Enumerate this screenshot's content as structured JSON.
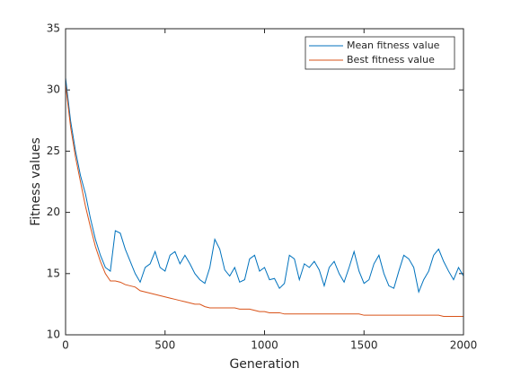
{
  "chart_data": {
    "type": "line",
    "xlabel": "Generation",
    "ylabel": "Fitness values",
    "x": [
      0,
      25,
      50,
      75,
      100,
      125,
      150,
      175,
      200,
      225,
      250,
      275,
      300,
      325,
      350,
      375,
      400,
      425,
      450,
      475,
      500,
      525,
      550,
      575,
      600,
      625,
      650,
      675,
      700,
      725,
      750,
      775,
      800,
      825,
      850,
      875,
      900,
      925,
      950,
      975,
      1000,
      1025,
      1050,
      1075,
      1100,
      1125,
      1150,
      1175,
      1200,
      1225,
      1250,
      1275,
      1300,
      1325,
      1350,
      1375,
      1400,
      1425,
      1450,
      1475,
      1500,
      1525,
      1550,
      1575,
      1600,
      1625,
      1650,
      1675,
      1700,
      1725,
      1750,
      1775,
      1800,
      1825,
      1850,
      1875,
      1900,
      1925,
      1950,
      1975,
      2000
    ],
    "series": [
      {
        "name": "Mean fitness value",
        "color": "#0072BD",
        "values": [
          31,
          27.5,
          25,
          23,
          21.5,
          19.5,
          17.8,
          16.5,
          15.5,
          15.2,
          18.5,
          18.3,
          17,
          16,
          15,
          14.3,
          15.5,
          15.8,
          16.8,
          15.5,
          15.2,
          16.5,
          16.8,
          15.8,
          16.5,
          15.8,
          15,
          14.5,
          14.2,
          15.5,
          17.8,
          17,
          15.3,
          14.8,
          15.5,
          14.3,
          14.5,
          16.2,
          16.5,
          15.2,
          15.5,
          14.5,
          14.6,
          13.8,
          14.2,
          16.5,
          16.2,
          14.5,
          15.8,
          15.5,
          16,
          15.3,
          14,
          15.5,
          16,
          15,
          14.3,
          15.5,
          16.8,
          15.2,
          14.2,
          14.5,
          15.8,
          16.5,
          15,
          14,
          13.8,
          15.2,
          16.5,
          16.2,
          15.5,
          13.5,
          14.5,
          15.2,
          16.5,
          17,
          16,
          15.2,
          14.5,
          15.5,
          14.8
        ]
      },
      {
        "name": "Best fitness value",
        "color": "#D95319",
        "values": [
          30.5,
          27,
          24.5,
          22.5,
          20.5,
          18.8,
          17.2,
          16,
          15,
          14.4,
          14.4,
          14.3,
          14.1,
          14,
          13.9,
          13.6,
          13.5,
          13.4,
          13.3,
          13.2,
          13.1,
          13,
          12.9,
          12.8,
          12.7,
          12.6,
          12.5,
          12.5,
          12.3,
          12.2,
          12.2,
          12.2,
          12.2,
          12.2,
          12.2,
          12.1,
          12.1,
          12.1,
          12,
          11.9,
          11.9,
          11.8,
          11.8,
          11.8,
          11.7,
          11.7,
          11.7,
          11.7,
          11.7,
          11.7,
          11.7,
          11.7,
          11.7,
          11.7,
          11.7,
          11.7,
          11.7,
          11.7,
          11.7,
          11.7,
          11.6,
          11.6,
          11.6,
          11.6,
          11.6,
          11.6,
          11.6,
          11.6,
          11.6,
          11.6,
          11.6,
          11.6,
          11.6,
          11.6,
          11.6,
          11.6,
          11.5,
          11.5,
          11.5,
          11.5,
          11.5
        ]
      }
    ],
    "xlim": [
      0,
      2000
    ],
    "xticks": [
      0,
      500,
      1000,
      1500,
      2000
    ],
    "ylim": [
      10,
      35
    ],
    "yticks": [
      10,
      15,
      20,
      25,
      30,
      35
    ],
    "grid": false,
    "legend": "northeast"
  }
}
